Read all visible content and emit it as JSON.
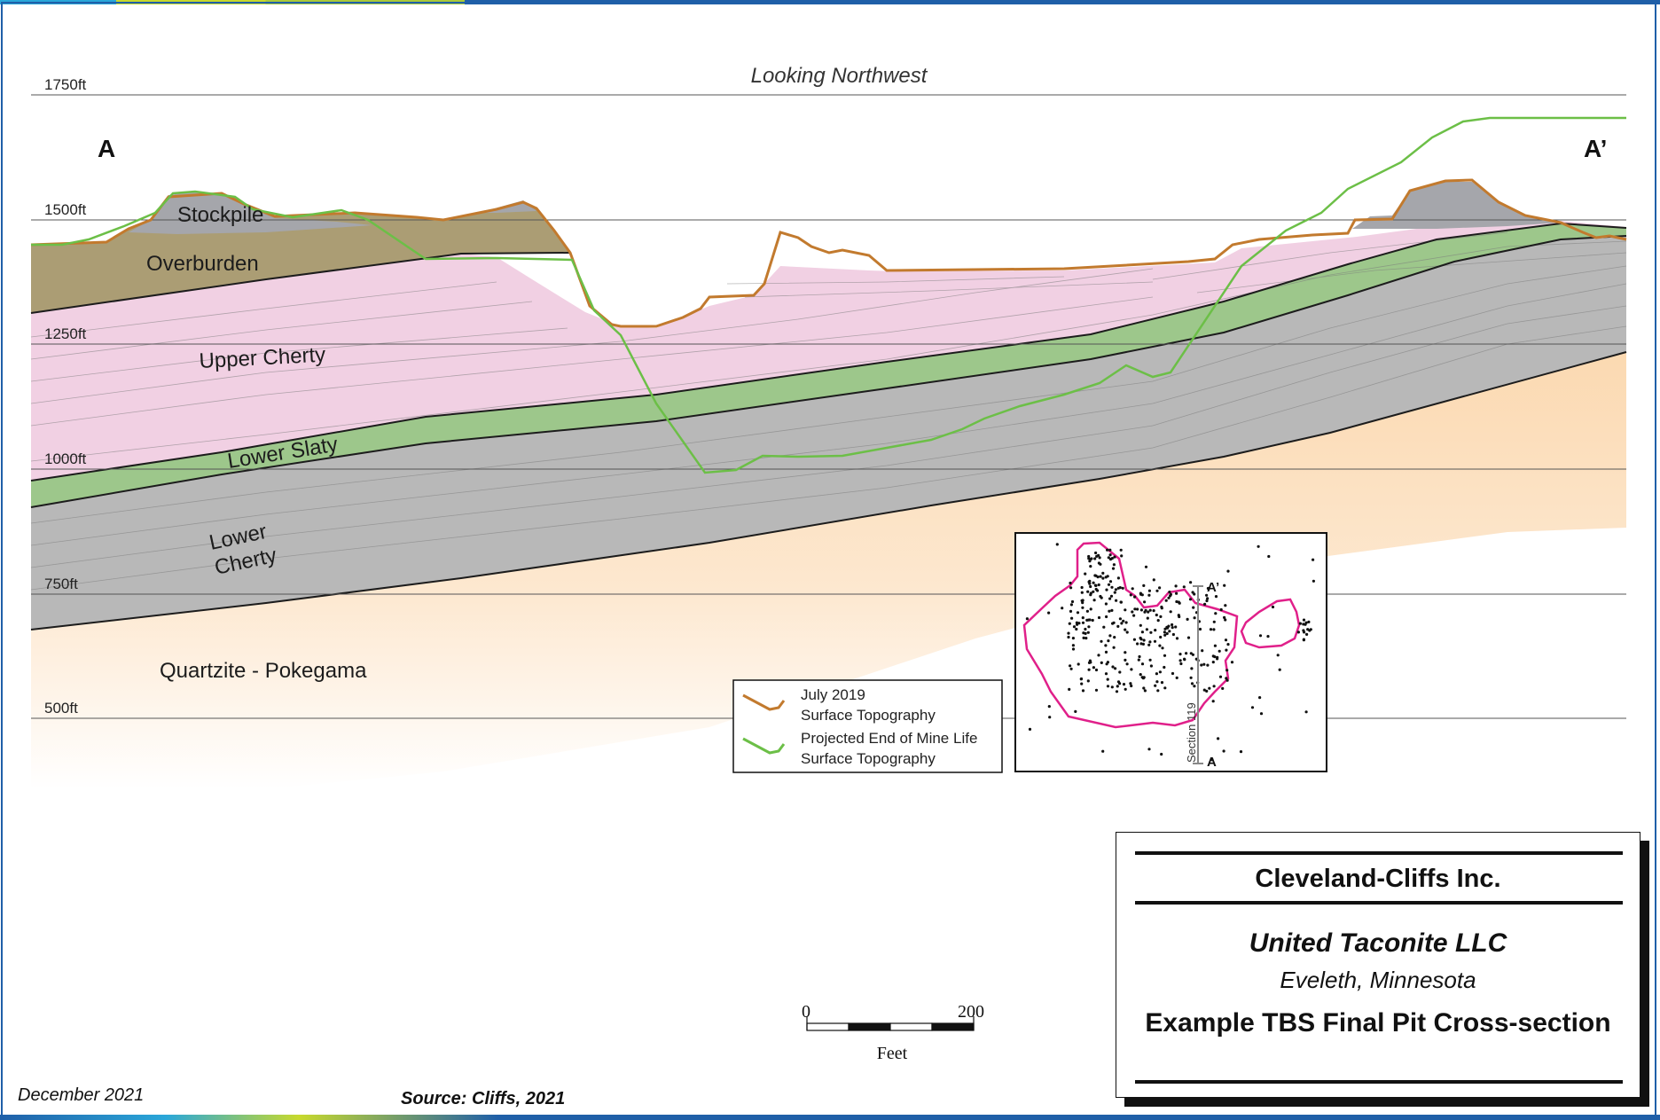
{
  "section": {
    "heading": "Looking Northwest",
    "endpoint_left": "A",
    "endpoint_right": "A’",
    "elevations": [
      "1750ft",
      "1500ft",
      "1250ft",
      "1000ft",
      "750ft",
      "500ft"
    ],
    "units": [
      "Stockpile",
      "Overburden",
      "Upper Cherty",
      "Lower Slaty",
      "Lower",
      "Cherty",
      "Quartzite - Pokegama"
    ],
    "colors": {
      "stockpile": "#a5a6ab",
      "overburden": "#ab9d74",
      "upper_cherty": "#f1d0e3",
      "lower_slaty": "#9dc78b",
      "lower_cherty": "#b8b8b8",
      "quartzite": "#fbd9b1",
      "july_2019": "#c27a2e",
      "projected": "#6cbf47"
    }
  },
  "legend": {
    "items": [
      {
        "line1": "July 2019",
        "line2": "Surface Topography"
      },
      {
        "line1": "Projected End of Mine Life",
        "line2": "Surface Topography"
      }
    ]
  },
  "inset": {
    "label_top": "A’",
    "label_bottom": "A",
    "section_label": "Section 119"
  },
  "scale_bar": {
    "min": "0",
    "max": "200",
    "unit": "Feet"
  },
  "title_block": {
    "company": "Cleveland-Cliffs Inc.",
    "subsidiary": "United Taconite LLC",
    "location": "Eveleth, Minnesota",
    "figure_title": "Example TBS Final Pit Cross-section"
  },
  "footer": {
    "date": "December 2021",
    "source": "Source: Cliffs, 2021"
  }
}
